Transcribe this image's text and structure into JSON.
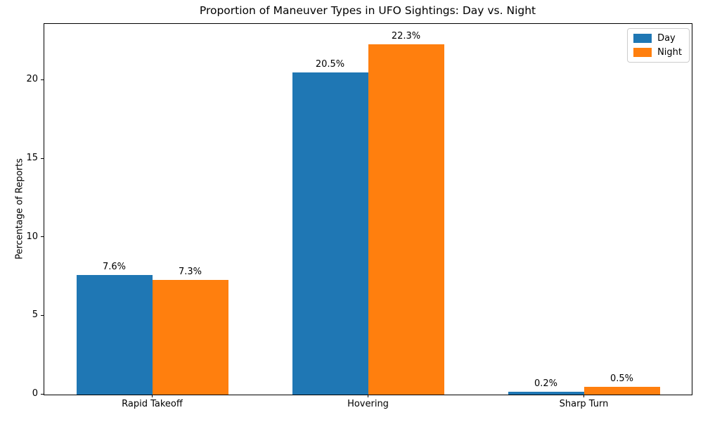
{
  "chart_data": {
    "type": "bar",
    "title": "Proportion of Maneuver Types in UFO Sightings: Day vs. Night",
    "xlabel": "",
    "ylabel": "Percentage of Reports",
    "categories": [
      "Rapid Takeoff",
      "Hovering",
      "Sharp Turn"
    ],
    "series": [
      {
        "name": "Day",
        "color": "#1f77b4",
        "values": [
          7.6,
          20.5,
          0.2
        ],
        "labels": [
          "7.6%",
          "20.5%",
          "0.2%"
        ]
      },
      {
        "name": "Night",
        "color": "#ff7f0e",
        "values": [
          7.3,
          22.3,
          0.5
        ],
        "labels": [
          "7.3%",
          "22.3%",
          "0.5%"
        ]
      }
    ],
    "ylim": [
      0,
      23.6
    ],
    "yticks": [
      0,
      5,
      10,
      15,
      20
    ],
    "grid": false,
    "legend_position": "upper right"
  }
}
